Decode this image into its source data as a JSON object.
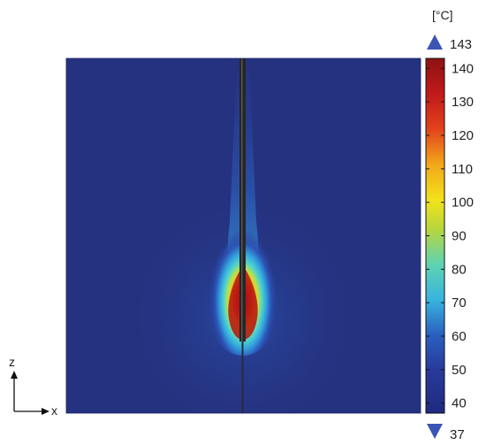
{
  "chart_data": {
    "type": "heatmap",
    "title": "",
    "xlabel": "x",
    "ylabel": "z",
    "colorbar": {
      "unit_label": "[°C]",
      "max_marker": "143",
      "min_marker": "37",
      "range": [
        37,
        143
      ],
      "ticks": [
        40,
        50,
        60,
        70,
        80,
        90,
        100,
        110,
        120,
        130,
        140
      ],
      "tick_labels": [
        "40",
        "50",
        "60",
        "70",
        "80",
        "90",
        "100",
        "110",
        "120",
        "130",
        "140"
      ],
      "colormap": [
        "#1f2a80",
        "#2a4fb5",
        "#3cbfe0",
        "#62d3a0",
        "#c8d93a",
        "#f2e21b",
        "#f2a81b",
        "#e3431c",
        "#c11a1a",
        "#8e1212"
      ],
      "marker_color": "#3b55b5"
    },
    "field": {
      "background_value": 37,
      "peak_value": 143,
      "hotspot_shape": "teardrop along probe, peak near probe tip",
      "probe_color": "#2a2a2a"
    }
  }
}
